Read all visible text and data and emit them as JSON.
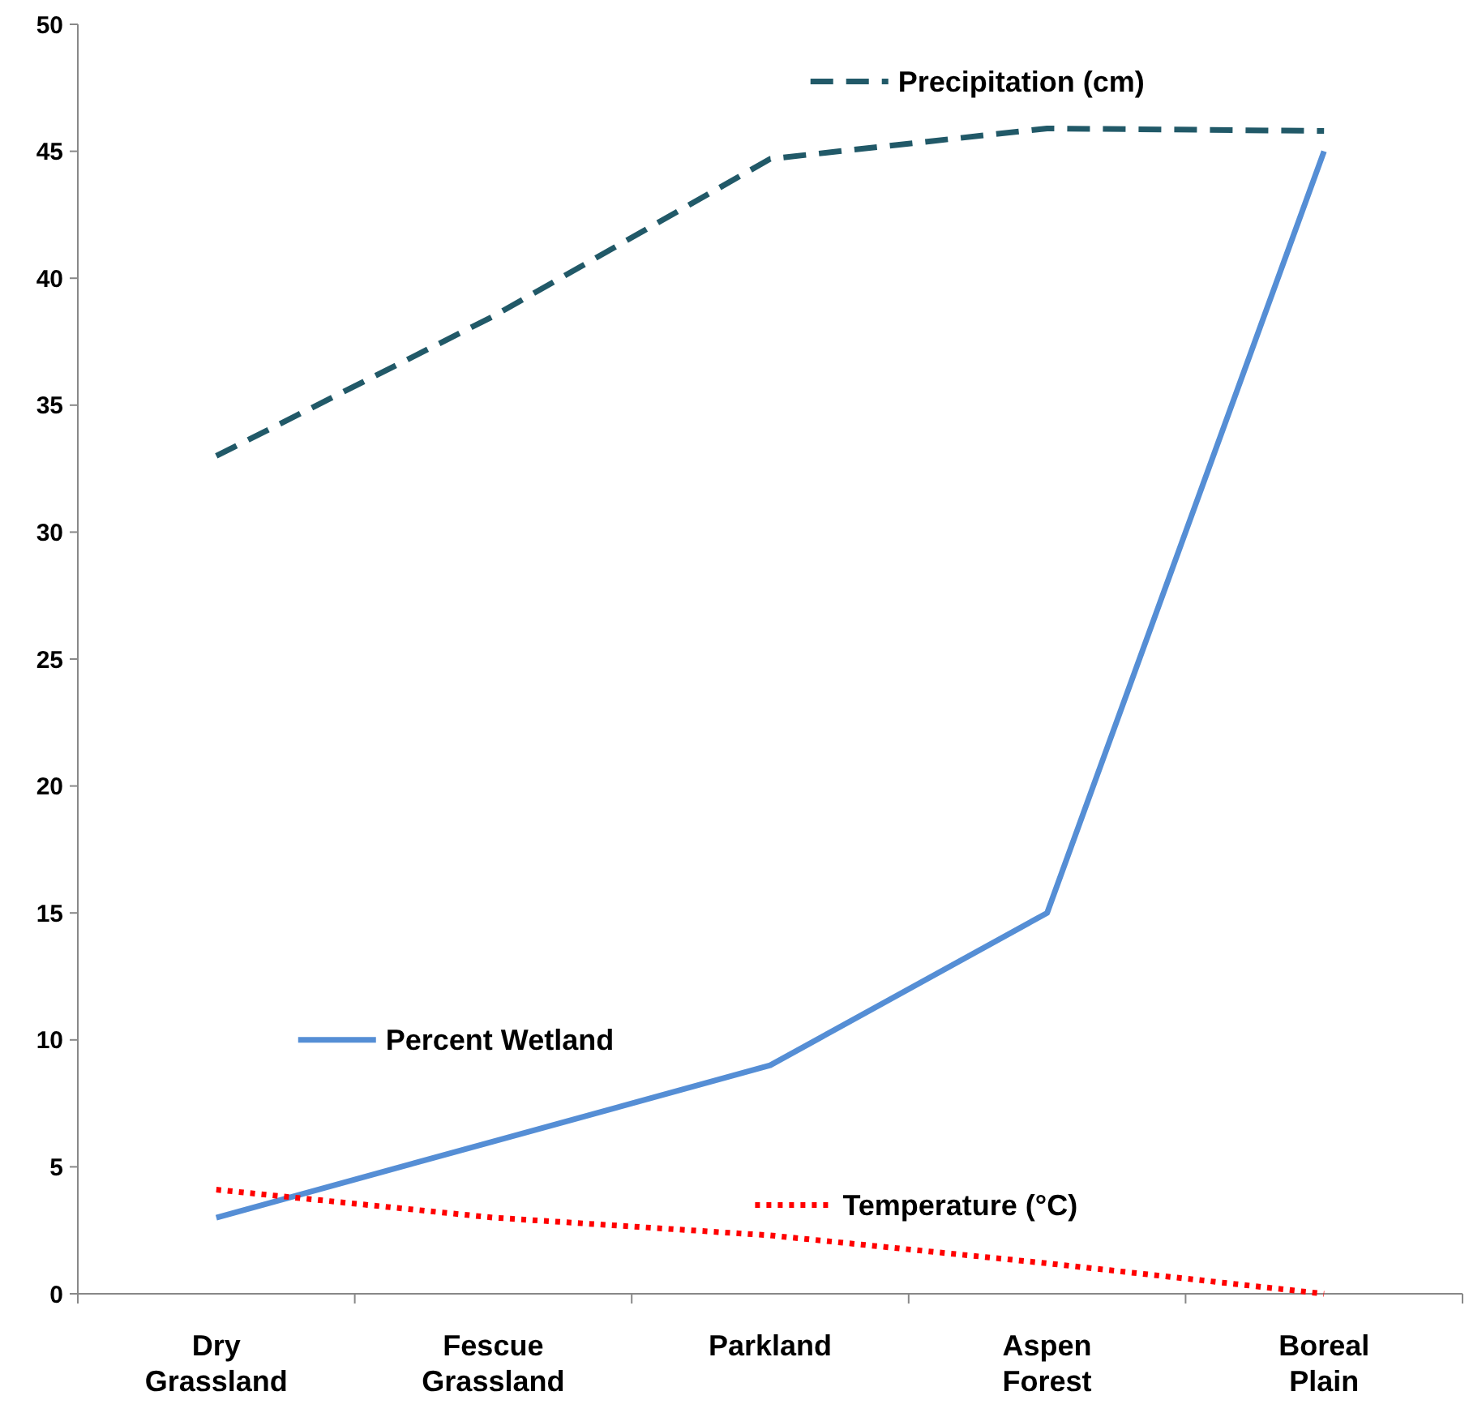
{
  "chart_data": {
    "type": "line",
    "categories": [
      "Dry\nGrassland",
      "Fescue\nGrassland",
      "Parkland",
      "Aspen\nForest",
      "Boreal\nPlain"
    ],
    "series": [
      {
        "name": "Precipitation (cm)",
        "color": "#215968",
        "line_style": "dashed",
        "values": [
          33,
          38.5,
          44.7,
          45.9,
          45.8
        ]
      },
      {
        "name": "Percent Wetland",
        "color": "#558ed5",
        "line_style": "solid",
        "values": [
          3,
          6,
          9,
          15,
          45
        ]
      },
      {
        "name": "Temperature (°C)",
        "color": "#ff0000",
        "line_style": "dotted",
        "values": [
          4.1,
          3.0,
          2.3,
          1.2,
          0
        ]
      }
    ],
    "ylim": [
      0,
      50
    ],
    "yticks": [
      0,
      5,
      10,
      15,
      20,
      25,
      30,
      35,
      40,
      45,
      50
    ],
    "grid": false,
    "legend": "top left"
  }
}
